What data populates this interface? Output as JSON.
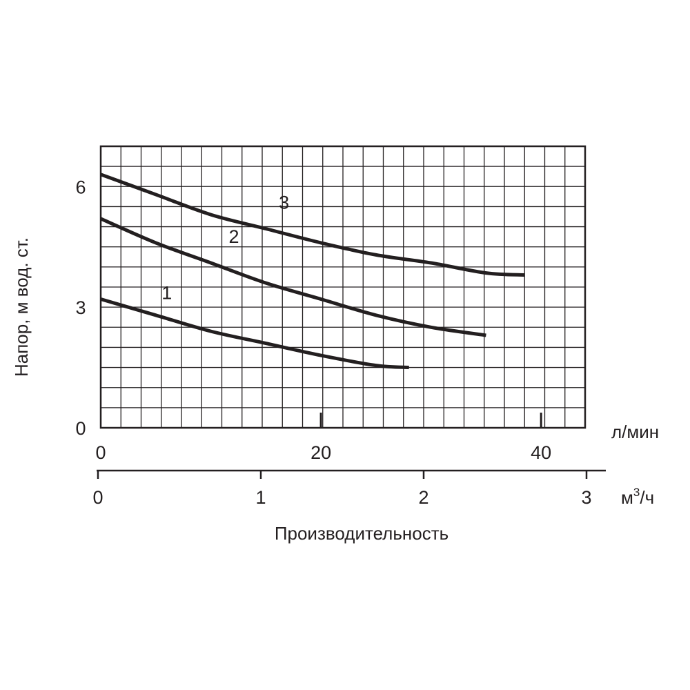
{
  "chart_data": {
    "type": "line",
    "title": "",
    "ylabel": "Напор, м  вод. ст.",
    "xlabel": "Производительность",
    "x_unit_primary": "л/мин",
    "x_unit_secondary_base": "м",
    "x_unit_secondary_sup": "3",
    "x_unit_secondary_tail": "/ч",
    "ylim": [
      0,
      7
    ],
    "xlim": [
      0,
      44
    ],
    "y_ticks": [
      "0",
      "3",
      "6"
    ],
    "x_ticks_lmin": [
      "0",
      "20",
      "40"
    ],
    "x_ticks_m3h": [
      "0",
      "1",
      "2",
      "3"
    ],
    "grid": true,
    "series": [
      {
        "name": "1",
        "x": [
          0,
          5,
          10,
          15,
          20,
          25,
          28
        ],
        "y": [
          3.2,
          2.8,
          2.4,
          2.1,
          1.8,
          1.55,
          1.5
        ]
      },
      {
        "name": "2",
        "x": [
          0,
          5,
          10,
          15,
          20,
          25,
          30,
          35
        ],
        "y": [
          5.2,
          4.6,
          4.1,
          3.6,
          3.2,
          2.8,
          2.5,
          2.3
        ]
      },
      {
        "name": "3",
        "x": [
          0,
          5,
          10,
          15,
          20,
          25,
          30,
          35,
          38.5
        ],
        "y": [
          6.3,
          5.8,
          5.3,
          4.95,
          4.6,
          4.3,
          4.1,
          3.85,
          3.8
        ]
      }
    ],
    "colors": {
      "ink": "#231f20",
      "background": "#ffffff"
    }
  }
}
